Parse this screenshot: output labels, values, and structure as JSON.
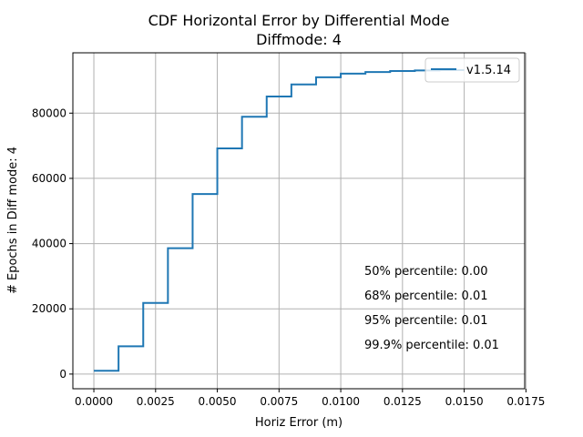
{
  "chart_data": {
    "type": "line",
    "title": "CDF Horizontal Error by Differential Mode",
    "subtitle": "Diffmode: 4",
    "xlabel": "Horiz Error (m)",
    "ylabel": "# Epochs in Diff mode: 4",
    "xlim": [
      -0.00085,
      0.01745
    ],
    "ylim": [
      -4500,
      98500
    ],
    "x_ticks": [
      0.0,
      0.0025,
      0.005,
      0.0075,
      0.01,
      0.0125,
      0.015,
      0.0175
    ],
    "x_tick_labels": [
      "0.0000",
      "0.0025",
      "0.0050",
      "0.0075",
      "0.0100",
      "0.0125",
      "0.0150",
      "0.0175"
    ],
    "y_ticks": [
      0,
      20000,
      40000,
      60000,
      80000
    ],
    "y_tick_labels": [
      "0",
      "20000",
      "40000",
      "60000",
      "80000"
    ],
    "grid": true,
    "legend_position": "top-right",
    "series": [
      {
        "name": "v1.5.14",
        "color": "#1f77b4",
        "step": "post",
        "x": [
          0.0,
          0.001,
          0.002,
          0.003,
          0.004,
          0.005,
          0.006,
          0.007,
          0.008,
          0.009,
          0.01,
          0.011,
          0.012,
          0.013,
          0.014
        ],
        "y": [
          1000,
          8500,
          21800,
          38600,
          55200,
          69200,
          78900,
          85100,
          88800,
          91000,
          92100,
          92600,
          92900,
          93100,
          93200
        ]
      }
    ],
    "annotations": [
      "50% percentile: 0.00",
      "68% percentile: 0.01",
      "95% percentile: 0.01",
      "99.9% percentile: 0.01"
    ]
  }
}
